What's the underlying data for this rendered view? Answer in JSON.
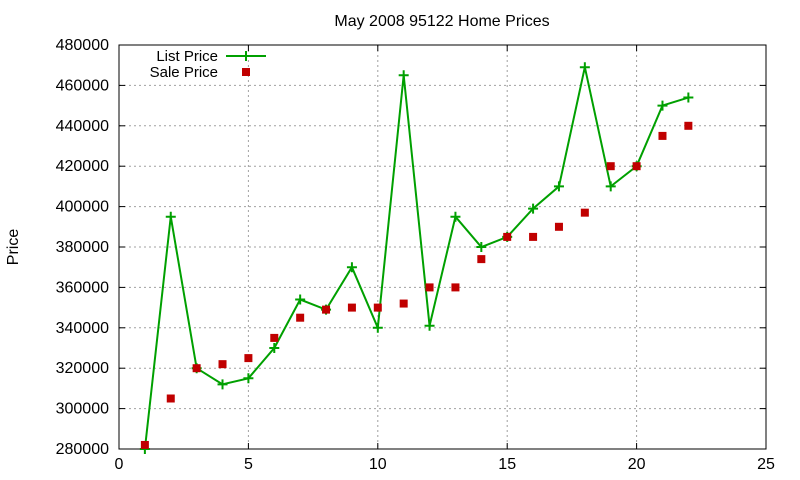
{
  "chart_data": {
    "type": "line",
    "title": "May 2008 95122 Home Prices",
    "xlabel": "",
    "ylabel": "Price",
    "xlim": [
      0,
      25
    ],
    "ylim": [
      280000,
      480000
    ],
    "xticks": [
      0,
      5,
      10,
      15,
      20,
      25
    ],
    "yticks": [
      280000,
      300000,
      320000,
      340000,
      360000,
      380000,
      400000,
      420000,
      440000,
      460000,
      480000
    ],
    "grid": true,
    "legend_position": "top-left",
    "series": [
      {
        "name": "List Price",
        "style": "linespoints",
        "marker": "plus",
        "color": "#00a000",
        "x": [
          1,
          2,
          3,
          4,
          5,
          6,
          7,
          8,
          9,
          10,
          11,
          12,
          13,
          14,
          15,
          16,
          17,
          18,
          19,
          20,
          21,
          22
        ],
        "y": [
          280000,
          395000,
          320000,
          312000,
          315000,
          330000,
          354000,
          349000,
          370000,
          340000,
          465000,
          341000,
          395000,
          380000,
          385000,
          399000,
          410000,
          469000,
          410000,
          420000,
          450000,
          454000
        ]
      },
      {
        "name": "Sale Price",
        "style": "points",
        "marker": "square",
        "color": "#c00000",
        "x": [
          1,
          2,
          3,
          4,
          5,
          6,
          7,
          8,
          9,
          10,
          11,
          12,
          13,
          14,
          15,
          16,
          17,
          18,
          19,
          20,
          21,
          22
        ],
        "y": [
          282000,
          305000,
          320000,
          322000,
          325000,
          335000,
          345000,
          349000,
          350000,
          350000,
          352000,
          360000,
          360000,
          374000,
          385000,
          385000,
          390000,
          397000,
          420000,
          420000,
          435000,
          440000
        ]
      }
    ]
  }
}
